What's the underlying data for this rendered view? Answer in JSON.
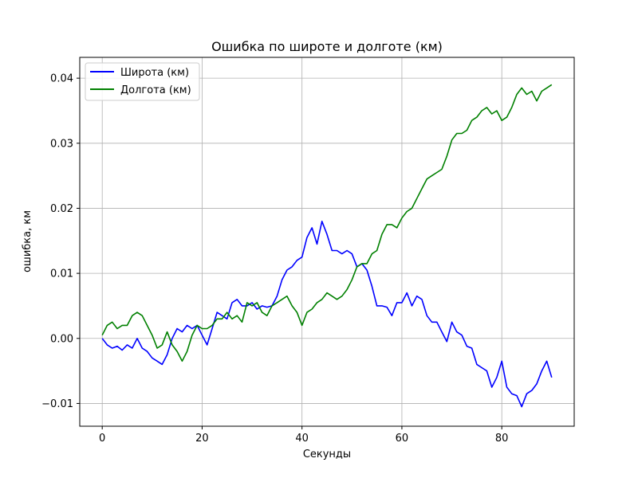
{
  "chart_data": {
    "type": "line",
    "title": "Ошибка по широте и долготе (км)",
    "xlabel": "Секунды",
    "ylabel": "ошибка, км",
    "xlim": [
      -4.5,
      94.5
    ],
    "ylim": [
      -0.0135,
      0.0432
    ],
    "xticks": [
      0,
      20,
      40,
      60,
      80
    ],
    "yticks": [
      -0.01,
      0.0,
      0.01,
      0.02,
      0.03,
      0.04
    ],
    "xtick_labels": [
      "0",
      "20",
      "40",
      "60",
      "80"
    ],
    "ytick_labels": [
      "−0.01",
      "0.00",
      "0.01",
      "0.02",
      "0.03",
      "0.04"
    ],
    "grid": true,
    "legend_position": "upper-left",
    "series": [
      {
        "name": "Широта (км)",
        "color": "#0000ff",
        "x": [
          0,
          1,
          2,
          3,
          4,
          5,
          6,
          7,
          8,
          9,
          10,
          11,
          12,
          13,
          14,
          15,
          16,
          17,
          18,
          19,
          20,
          21,
          22,
          23,
          24,
          25,
          26,
          27,
          28,
          29,
          30,
          31,
          32,
          33,
          34,
          35,
          36,
          37,
          38,
          39,
          40,
          41,
          42,
          43,
          44,
          45,
          46,
          47,
          48,
          49,
          50,
          51,
          52,
          53,
          54,
          55,
          56,
          57,
          58,
          59,
          60,
          61,
          62,
          63,
          64,
          65,
          66,
          67,
          68,
          69,
          70,
          71,
          72,
          73,
          74,
          75,
          76,
          77,
          78,
          79,
          80,
          81,
          82,
          83,
          84,
          85,
          86,
          87,
          88,
          89,
          90
        ],
        "y": [
          0.0,
          -0.001,
          -0.0015,
          -0.0012,
          -0.0018,
          -0.001,
          -0.0015,
          0.0,
          -0.0015,
          -0.002,
          -0.003,
          -0.0035,
          -0.004,
          -0.0025,
          0.0,
          0.0015,
          0.001,
          0.002,
          0.0015,
          0.002,
          0.0005,
          -0.001,
          0.0015,
          0.004,
          0.0035,
          0.003,
          0.0055,
          0.006,
          0.005,
          0.005,
          0.0055,
          0.0045,
          0.005,
          0.0048,
          0.005,
          0.0065,
          0.009,
          0.0105,
          0.011,
          0.012,
          0.0125,
          0.0155,
          0.017,
          0.0145,
          0.018,
          0.016,
          0.0135,
          0.0135,
          0.013,
          0.0135,
          0.013,
          0.011,
          0.0115,
          0.0105,
          0.008,
          0.005,
          0.005,
          0.0048,
          0.0035,
          0.0055,
          0.0055,
          0.007,
          0.005,
          0.0065,
          0.006,
          0.0035,
          0.0025,
          0.0025,
          0.001,
          -0.0005,
          0.0025,
          0.001,
          0.0005,
          -0.0012,
          -0.0015,
          -0.004,
          -0.0045,
          -0.005,
          -0.0075,
          -0.006,
          -0.0035,
          -0.0075,
          -0.0085,
          -0.0088,
          -0.0105,
          -0.0085,
          -0.008,
          -0.007,
          -0.005,
          -0.0035,
          -0.006
        ]
      },
      {
        "name": "Долгота (км)",
        "color": "#008000",
        "x": [
          0,
          1,
          2,
          3,
          4,
          5,
          6,
          7,
          8,
          9,
          10,
          11,
          12,
          13,
          14,
          15,
          16,
          17,
          18,
          19,
          20,
          21,
          22,
          23,
          24,
          25,
          26,
          27,
          28,
          29,
          30,
          31,
          32,
          33,
          34,
          35,
          36,
          37,
          38,
          39,
          40,
          41,
          42,
          43,
          44,
          45,
          46,
          47,
          48,
          49,
          50,
          51,
          52,
          53,
          54,
          55,
          56,
          57,
          58,
          59,
          60,
          61,
          62,
          63,
          64,
          65,
          66,
          67,
          68,
          69,
          70,
          71,
          72,
          73,
          74,
          75,
          76,
          77,
          78,
          79,
          80,
          81,
          82,
          83,
          84,
          85,
          86,
          87,
          88,
          89,
          90
        ],
        "y": [
          0.0005,
          0.002,
          0.0025,
          0.0015,
          0.002,
          0.002,
          0.0035,
          0.004,
          0.0035,
          0.002,
          0.0005,
          -0.0015,
          -0.001,
          0.001,
          -0.001,
          -0.002,
          -0.0035,
          -0.002,
          0.0005,
          0.002,
          0.0015,
          0.0015,
          0.002,
          0.003,
          0.003,
          0.004,
          0.003,
          0.0035,
          0.0025,
          0.0055,
          0.005,
          0.0055,
          0.004,
          0.0035,
          0.005,
          0.0055,
          0.006,
          0.0065,
          0.005,
          0.004,
          0.002,
          0.004,
          0.0045,
          0.0055,
          0.006,
          0.007,
          0.0065,
          0.006,
          0.0065,
          0.0075,
          0.009,
          0.011,
          0.0115,
          0.0115,
          0.013,
          0.0135,
          0.016,
          0.0175,
          0.0175,
          0.017,
          0.0185,
          0.0195,
          0.02,
          0.0215,
          0.023,
          0.0245,
          0.025,
          0.0255,
          0.026,
          0.028,
          0.0305,
          0.0315,
          0.0315,
          0.032,
          0.0335,
          0.034,
          0.035,
          0.0355,
          0.0345,
          0.035,
          0.0335,
          0.034,
          0.0355,
          0.0375,
          0.0385,
          0.0375,
          0.038,
          0.0365,
          0.038,
          0.0385,
          0.039
        ]
      }
    ]
  }
}
